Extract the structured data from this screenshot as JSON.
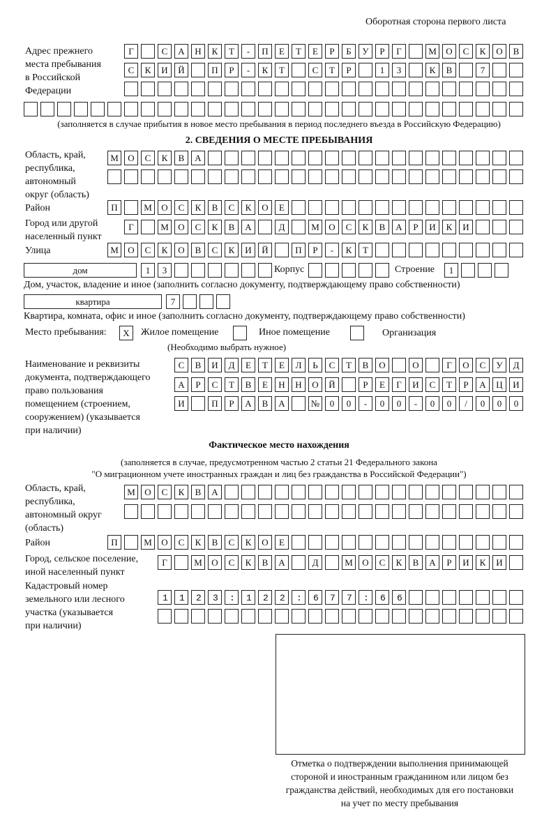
{
  "header": {
    "page_side": "Оборотная сторона первого листа"
  },
  "previous_address": {
    "label": [
      "Адрес прежнего",
      "места пребывания",
      "в Российской",
      "Федерации"
    ],
    "rows": [
      "Г САНКТ-ПЕТЕРБУРГ МОСКОВ",
      "СКИЙ ПР-КТ СТР 13 КВ 7",
      "",
      ""
    ],
    "note": "(заполняется в случае прибытия в новое место пребывания в период последнего въезда в Российскую Федерацию)"
  },
  "section2": {
    "title": "2. СВЕДЕНИЯ О МЕСТЕ ПРЕБЫВАНИЯ",
    "region_label": [
      "Область, край,",
      "республика,",
      "автономный",
      "округ (область)"
    ],
    "region_rows": [
      "МОСКВА",
      ""
    ],
    "district_label": "Район",
    "district": "П МОСКВСКОЕ",
    "city_label": [
      "Город или другой",
      "населенный пункт"
    ],
    "city": "Г МОСКВА Д МОСКВАРИКИ",
    "street_label": "Улица",
    "street": "МОСКОВСКИЙ ПР-КТ",
    "house_type": "дом",
    "house_number": "13",
    "building_label": "Корпус",
    "building": "",
    "structure_label": "Строение",
    "structure": "1",
    "house_note": "Дом, участок, владение и иное (заполнить согласно документу, подтверждающему право собственности)",
    "apartment_type": "квартира",
    "apartment_number": "7",
    "apartment_note": "Квартира, комната, офис и иное (заполнить согласно документу, подтверждающему право собственности)",
    "stay_place_label": "Место пребывания:",
    "options": [
      {
        "label": "Жилое помещение",
        "mark": "X"
      },
      {
        "label": "Иное помещение",
        "mark": ""
      },
      {
        "label": "Организация",
        "mark": ""
      }
    ],
    "choose_note": "(Необходимо выбрать нужное)",
    "document_label": [
      "Наименование и реквизиты",
      "документа, подтверждающего",
      "право пользования",
      "помещением (строением,",
      "сооружением) (указывается",
      "при наличии)"
    ],
    "document_rows": [
      "СВИДЕТЕЛЬСТВО О ГОСУД",
      "АРСТВЕННОЙ РЕГИСТРАЦИ",
      "И ПРАВА №00-00-00/000"
    ]
  },
  "actual_location": {
    "title": "Фактическое место нахождения",
    "note": [
      "(заполняется в случае, предусмотренном частью 2 статьи 21 Федерального закона",
      "\"О миграционном учете иностранных граждан и лиц без гражданства в Российской Федерации\")"
    ],
    "region_label": [
      "Область, край,",
      "республика,",
      "автономный округ",
      "(область)"
    ],
    "region_rows": [
      "МОСКВА",
      ""
    ],
    "district_label": "Район",
    "district": "П МОСКВСКОЕ",
    "city_label": [
      "Город, сельское поселение,",
      "иной населенный пункт"
    ],
    "city": "Г МОСКВА Д МОСКВАРИКИ",
    "cadastral_label": [
      "Кадастровый номер",
      "земельного или лесного",
      "участка (указывается",
      "при наличии)"
    ],
    "cadastral_rows": [
      "1123:122:677:66",
      ""
    ]
  },
  "confirmation": {
    "caption": [
      "Отметка о подтверждении выполнения принимающей",
      "стороной и иностранным гражданином или лицом без",
      "гражданства действий, необходимых для его постановки",
      "на учет по месту пребывания"
    ]
  }
}
